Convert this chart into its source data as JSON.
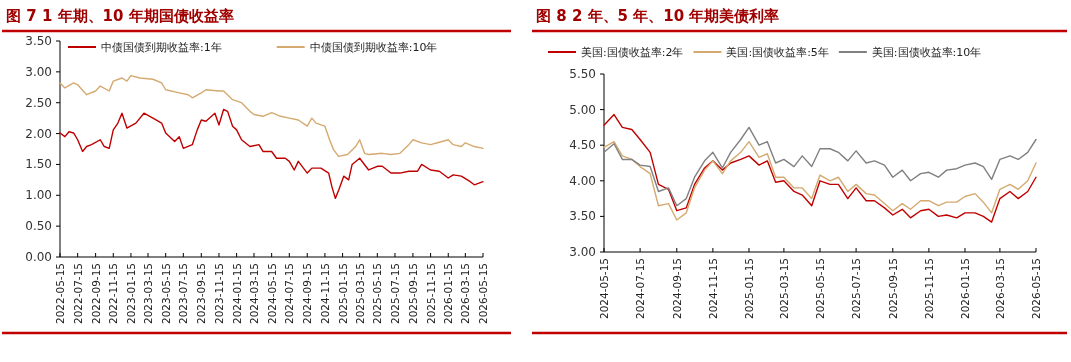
{
  "chart_data": [
    {
      "type": "line",
      "title": "图 7 1 年期、10 年期国债收益率",
      "legend": "top",
      "xlim": [
        "2022-05-15",
        "2026-05-15"
      ],
      "xticks": [
        "2022-05-15",
        "2022-07-15",
        "2022-09-15",
        "2022-11-15",
        "2023-01-15",
        "2023-03-15",
        "2023-05-15",
        "2023-07-15",
        "2023-09-15",
        "2023-11-15",
        "2024-01-15",
        "2024-03-15",
        "2024-05-15",
        "2024-07-15",
        "2024-09-15",
        "2024-11-15",
        "2025-01-15",
        "2025-03-15",
        "2025-05-15",
        "2025-07-15",
        "2025-09-15",
        "2025-11-15",
        "2026-01-15",
        "2026-03-15",
        "2026-05-15"
      ],
      "ylim": [
        0,
        3.5
      ],
      "yticks": [
        {
          "value": 0,
          "label": "0.00"
        },
        {
          "value": 0.5,
          "label": "0.50"
        },
        {
          "value": 1,
          "label": "1.00"
        },
        {
          "value": 1.5,
          "label": "1.50"
        },
        {
          "value": 2,
          "label": "2.00"
        },
        {
          "value": 2.5,
          "label": "2.50"
        },
        {
          "value": 3,
          "label": "3.00"
        },
        {
          "value": 3.5,
          "label": "3.50"
        }
      ],
      "series": [
        {
          "name": "中债国债到期收益率:1年",
          "color": "#c00000",
          "x": [
            "2022-05-15",
            "2022-06-01",
            "2022-06-15",
            "2022-07-01",
            "2022-07-15",
            "2022-08-01",
            "2022-08-15",
            "2022-09-01",
            "2022-10-01",
            "2022-10-15",
            "2022-11-01",
            "2022-11-15",
            "2022-12-01",
            "2022-12-15",
            "2023-01-01",
            "2023-02-01",
            "2023-03-01",
            "2023-04-01",
            "2023-05-01",
            "2023-05-15",
            "2023-06-15",
            "2023-07-01",
            "2023-07-15",
            "2023-08-15",
            "2023-09-01",
            "2023-09-15",
            "2023-10-01",
            "2023-11-01",
            "2023-11-15",
            "2023-12-01",
            "2023-12-15",
            "2024-01-01",
            "2024-01-15",
            "2024-02-01",
            "2024-03-01",
            "2024-04-01",
            "2024-04-15",
            "2024-05-15",
            "2024-06-01",
            "2024-07-01",
            "2024-07-15",
            "2024-08-01",
            "2024-08-15",
            "2024-09-15",
            "2024-10-01",
            "2024-11-01",
            "2024-11-28",
            "2024-12-09",
            "2024-12-21",
            "2025-01-02",
            "2025-01-19",
            "2025-02-05",
            "2025-02-17",
            "2025-03-15",
            "2025-04-15",
            "2025-05-15",
            "2025-06-01",
            "2025-07-01",
            "2025-08-01",
            "2025-09-01",
            "2025-10-01",
            "2025-10-15",
            "2025-11-15",
            "2025-12-15",
            "2026-01-15",
            "2026-02-01",
            "2026-03-01",
            "2026-04-01",
            "2026-04-15",
            "2026-05-15"
          ],
          "values": [
            2.01,
            1.95,
            2.03,
            2.01,
            1.9,
            1.71,
            1.79,
            1.82,
            1.9,
            1.79,
            1.76,
            2.06,
            2.17,
            2.33,
            2.09,
            2.17,
            2.33,
            2.25,
            2.17,
            2.01,
            1.87,
            1.95,
            1.76,
            1.82,
            2.06,
            2.22,
            2.2,
            2.33,
            2.14,
            2.39,
            2.36,
            2.12,
            2.06,
            1.9,
            1.79,
            1.82,
            1.71,
            1.71,
            1.6,
            1.6,
            1.55,
            1.41,
            1.55,
            1.36,
            1.44,
            1.44,
            1.36,
            1.14,
            0.95,
            1.09,
            1.31,
            1.25,
            1.5,
            1.6,
            1.41,
            1.47,
            1.47,
            1.36,
            1.36,
            1.39,
            1.39,
            1.5,
            1.41,
            1.39,
            1.28,
            1.33,
            1.31,
            1.22,
            1.17,
            1.22
          ]
        },
        {
          "name": "中债国债到期收益率:10年",
          "color": "#d4aa70",
          "x": [
            "2022-05-15",
            "2022-06-01",
            "2022-07-01",
            "2022-07-15",
            "2022-08-15",
            "2022-09-15",
            "2022-10-01",
            "2022-11-01",
            "2022-11-15",
            "2022-12-15",
            "2023-01-01",
            "2023-01-15",
            "2023-02-15",
            "2023-04-01",
            "2023-05-01",
            "2023-05-15",
            "2023-07-01",
            "2023-08-01",
            "2023-08-15",
            "2023-09-15",
            "2023-10-01",
            "2023-11-15",
            "2023-12-01",
            "2024-01-01",
            "2024-02-01",
            "2024-03-01",
            "2024-03-15",
            "2024-04-15",
            "2024-05-15",
            "2024-06-15",
            "2024-07-15",
            "2024-08-15",
            "2024-09-15",
            "2024-10-01",
            "2024-10-15",
            "2024-11-15",
            "2024-12-01",
            "2024-12-15",
            "2025-01-01",
            "2025-02-01",
            "2025-03-01",
            "2025-03-15",
            "2025-04-01",
            "2025-04-15",
            "2025-06-01",
            "2025-07-01",
            "2025-08-01",
            "2025-09-01",
            "2025-09-15",
            "2025-10-15",
            "2025-11-15",
            "2025-12-15",
            "2026-01-15",
            "2026-02-01",
            "2026-03-01",
            "2026-03-15",
            "2026-04-15",
            "2026-05-15"
          ],
          "values": [
            2.82,
            2.74,
            2.82,
            2.79,
            2.63,
            2.69,
            2.77,
            2.69,
            2.85,
            2.9,
            2.85,
            2.94,
            2.9,
            2.88,
            2.82,
            2.71,
            2.66,
            2.63,
            2.58,
            2.66,
            2.71,
            2.69,
            2.69,
            2.55,
            2.5,
            2.36,
            2.31,
            2.28,
            2.34,
            2.28,
            2.25,
            2.22,
            2.12,
            2.25,
            2.17,
            2.12,
            1.9,
            1.74,
            1.63,
            1.66,
            1.79,
            1.9,
            1.68,
            1.66,
            1.68,
            1.66,
            1.68,
            1.82,
            1.9,
            1.85,
            1.82,
            1.86,
            1.9,
            1.82,
            1.79,
            1.85,
            1.79,
            1.76
          ]
        }
      ]
    },
    {
      "type": "line",
      "title": "图 8 2 年、5 年、10 年期美债利率",
      "legend": "top",
      "xlim": [
        "2024-05-15",
        "2026-05-15"
      ],
      "xticks": [
        "2024-05-15",
        "2024-07-15",
        "2024-09-15",
        "2024-11-15",
        "2025-01-15",
        "2025-03-15",
        "2025-05-15",
        "2025-07-15",
        "2025-09-15",
        "2025-11-15",
        "2026-01-15",
        "2026-03-15",
        "2026-05-15"
      ],
      "ylim": [
        3,
        5.5
      ],
      "yticks": [
        {
          "value": 3,
          "label": "3.00"
        },
        {
          "value": 3.5,
          "label": "3.50"
        },
        {
          "value": 4,
          "label": "4.00"
        },
        {
          "value": 4.5,
          "label": "4.50"
        },
        {
          "value": 5,
          "label": "5.00"
        },
        {
          "value": 5.5,
          "label": "5.50"
        }
      ],
      "x": [
        "2024-05-15",
        "2024-06-01",
        "2024-06-15",
        "2024-07-01",
        "2024-07-15",
        "2024-08-01",
        "2024-08-15",
        "2024-09-01",
        "2024-09-15",
        "2024-10-01",
        "2024-10-15",
        "2024-11-01",
        "2024-11-15",
        "2024-12-01",
        "2024-12-15",
        "2025-01-01",
        "2025-01-15",
        "2025-02-01",
        "2025-02-15",
        "2025-03-01",
        "2025-03-15",
        "2025-04-01",
        "2025-04-15",
        "2025-05-01",
        "2025-05-15",
        "2025-06-01",
        "2025-06-15",
        "2025-07-01",
        "2025-07-15",
        "2025-08-01",
        "2025-08-15",
        "2025-09-01",
        "2025-09-15",
        "2025-10-01",
        "2025-10-15",
        "2025-11-01",
        "2025-11-15",
        "2025-12-01",
        "2025-12-15",
        "2026-01-01",
        "2026-01-15",
        "2026-02-01",
        "2026-02-15",
        "2026-03-01",
        "2026-03-15",
        "2026-04-01",
        "2026-04-15",
        "2026-05-01",
        "2026-05-15"
      ],
      "series": [
        {
          "name": "美国:国债收益率:2年",
          "color": "#c00000",
          "values": [
            4.78,
            4.93,
            4.75,
            4.72,
            4.58,
            4.4,
            3.95,
            3.88,
            3.58,
            3.62,
            3.95,
            4.18,
            4.28,
            4.15,
            4.25,
            4.3,
            4.35,
            4.22,
            4.28,
            3.98,
            4.0,
            3.85,
            3.8,
            3.65,
            4.0,
            3.95,
            3.95,
            3.75,
            3.9,
            3.72,
            3.72,
            3.62,
            3.52,
            3.6,
            3.48,
            3.58,
            3.6,
            3.5,
            3.52,
            3.48,
            3.55,
            3.55,
            3.5,
            3.42,
            3.75,
            3.85,
            3.75,
            3.85,
            4.05
          ]
        },
        {
          "name": "美国:国债收益率:5年",
          "color": "#d4aa70",
          "values": [
            4.47,
            4.55,
            4.35,
            4.3,
            4.2,
            4.1,
            3.65,
            3.68,
            3.45,
            3.55,
            3.9,
            4.15,
            4.28,
            4.1,
            4.28,
            4.4,
            4.55,
            4.33,
            4.38,
            4.05,
            4.05,
            3.9,
            3.9,
            3.75,
            4.08,
            4.0,
            4.05,
            3.85,
            3.95,
            3.82,
            3.8,
            3.68,
            3.58,
            3.68,
            3.6,
            3.72,
            3.72,
            3.65,
            3.7,
            3.7,
            3.78,
            3.82,
            3.7,
            3.55,
            3.88,
            3.95,
            3.88,
            4.0,
            4.25
          ]
        },
        {
          "name": "美国:国债收益率:10年",
          "color": "#808080",
          "values": [
            4.4,
            4.52,
            4.3,
            4.3,
            4.22,
            4.2,
            3.85,
            3.9,
            3.65,
            3.75,
            4.05,
            4.28,
            4.4,
            4.18,
            4.4,
            4.58,
            4.75,
            4.5,
            4.55,
            4.25,
            4.3,
            4.2,
            4.35,
            4.2,
            4.45,
            4.45,
            4.4,
            4.28,
            4.42,
            4.25,
            4.28,
            4.22,
            4.05,
            4.15,
            4.0,
            4.1,
            4.12,
            4.05,
            4.15,
            4.17,
            4.22,
            4.25,
            4.2,
            4.02,
            4.3,
            4.35,
            4.3,
            4.4,
            4.58
          ]
        }
      ]
    }
  ]
}
